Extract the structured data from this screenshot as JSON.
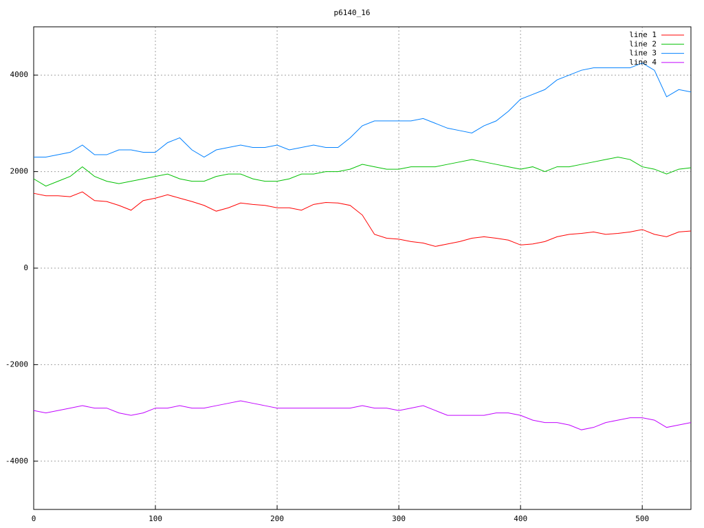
{
  "chart_data": {
    "type": "line",
    "title": "p6140_16",
    "x": [
      0,
      10,
      20,
      30,
      40,
      50,
      60,
      70,
      80,
      90,
      100,
      110,
      120,
      130,
      140,
      150,
      160,
      170,
      180,
      190,
      200,
      210,
      220,
      230,
      240,
      250,
      260,
      270,
      280,
      290,
      300,
      310,
      320,
      330,
      340,
      350,
      360,
      370,
      380,
      390,
      400,
      410,
      420,
      430,
      440,
      450,
      460,
      470,
      480,
      490,
      500,
      510,
      520,
      530,
      540
    ],
    "series": [
      {
        "name": "line 1",
        "color": "#ff0000",
        "values": [
          1550,
          1500,
          1500,
          1480,
          1580,
          1400,
          1380,
          1300,
          1200,
          1400,
          1450,
          1520,
          1450,
          1380,
          1300,
          1180,
          1250,
          1350,
          1320,
          1300,
          1250,
          1250,
          1200,
          1320,
          1360,
          1350,
          1300,
          1100,
          700,
          620,
          600,
          550,
          520,
          450,
          500,
          550,
          620,
          650,
          620,
          580,
          480,
          500,
          550,
          650,
          700,
          720,
          750,
          700,
          720,
          750,
          800,
          700,
          650,
          750,
          770
        ]
      },
      {
        "name": "line 2",
        "color": "#00c000",
        "values": [
          1850,
          1700,
          1800,
          1900,
          2100,
          1900,
          1800,
          1750,
          1800,
          1850,
          1900,
          1950,
          1850,
          1800,
          1800,
          1900,
          1950,
          1950,
          1850,
          1800,
          1800,
          1850,
          1950,
          1950,
          2000,
          2000,
          2050,
          2150,
          2100,
          2050,
          2050,
          2100,
          2100,
          2100,
          2150,
          2200,
          2250,
          2200,
          2150,
          2100,
          2050,
          2100,
          2000,
          2100,
          2100,
          2150,
          2200,
          2250,
          2300,
          2250,
          2100,
          2050,
          1950,
          2050,
          2080
        ]
      },
      {
        "name": "line 3",
        "color": "#0080ff",
        "values": [
          2300,
          2300,
          2350,
          2400,
          2550,
          2350,
          2350,
          2450,
          2450,
          2400,
          2400,
          2600,
          2700,
          2450,
          2300,
          2450,
          2500,
          2550,
          2500,
          2500,
          2550,
          2450,
          2500,
          2550,
          2500,
          2500,
          2700,
          2950,
          3050,
          3050,
          3050,
          3050,
          3100,
          3000,
          2900,
          2850,
          2800,
          2950,
          3050,
          3250,
          3500,
          3600,
          3700,
          3900,
          4000,
          4100,
          4150,
          4150,
          4150,
          4150,
          4250,
          4100,
          3550,
          3700,
          3650
        ]
      },
      {
        "name": "line 4",
        "color": "#c000ff",
        "values": [
          -2950,
          -3000,
          -2950,
          -2900,
          -2850,
          -2900,
          -2900,
          -3000,
          -3050,
          -3000,
          -2900,
          -2900,
          -2850,
          -2900,
          -2900,
          -2850,
          -2800,
          -2750,
          -2800,
          -2850,
          -2900,
          -2900,
          -2900,
          -2900,
          -2900,
          -2900,
          -2900,
          -2850,
          -2900,
          -2900,
          -2950,
          -2900,
          -2850,
          -2950,
          -3050,
          -3050,
          -3050,
          -3050,
          -3000,
          -3000,
          -3050,
          -3150,
          -3200,
          -3200,
          -3250,
          -3350,
          -3300,
          -3200,
          -3150,
          -3100,
          -3100,
          -3150,
          -3300,
          -3250,
          -3200
        ]
      }
    ],
    "xlim": [
      0,
      540
    ],
    "xticks": [
      0,
      100,
      200,
      300,
      400,
      500
    ],
    "ylim": [
      -5000,
      5000
    ],
    "yticks": [
      -4000,
      -2000,
      0,
      2000,
      4000
    ],
    "grid": true,
    "legend": "top-right"
  }
}
